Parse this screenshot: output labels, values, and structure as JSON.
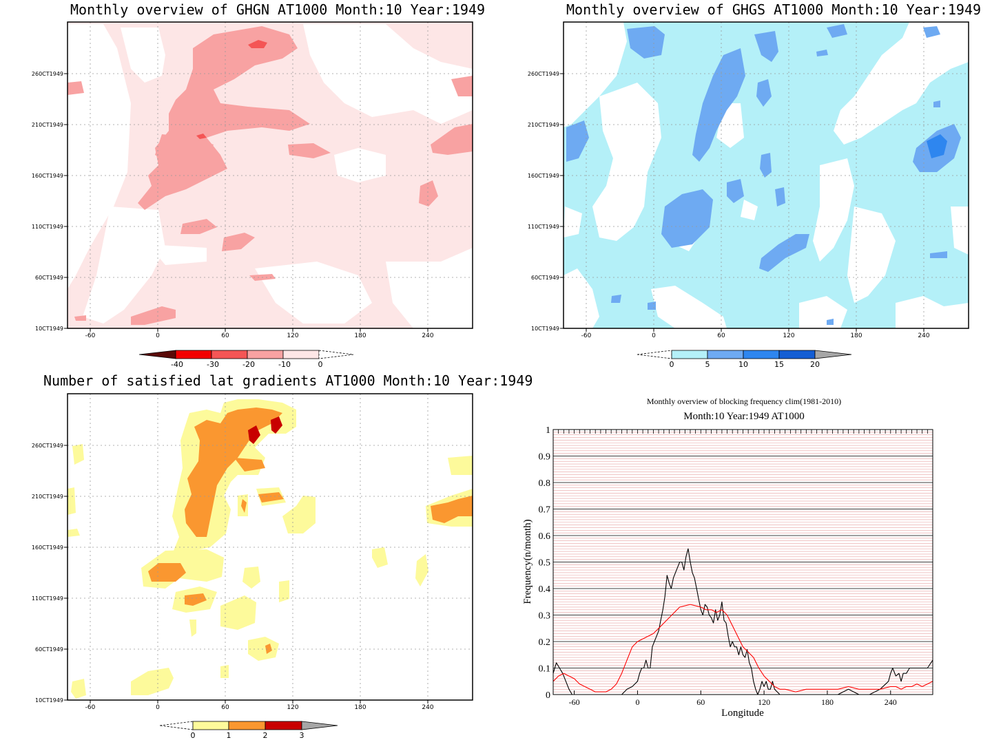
{
  "panels": {
    "ghgn": {
      "title": "Monthly overview of GHGN AT1000 Month:10 Year:1949",
      "x_ticks": [
        "-60",
        "0",
        "60",
        "120",
        "180",
        "240"
      ],
      "y_ticks": [
        "10CT1949",
        "60CT1949",
        "110CT1949",
        "160CT1949",
        "210CT1949",
        "260CT1949"
      ],
      "colorbar": {
        "labels": [
          "-40",
          "-30",
          "-20",
          "-10",
          "0"
        ],
        "colors": [
          "#5a0a08",
          "#f20000",
          "#f45555",
          "#f8a2a2",
          "#fde6e6",
          "#ffffff"
        ]
      }
    },
    "ghgs": {
      "title": "Monthly overview of GHGS AT1000 Month:10 Year:1949",
      "x_ticks": [
        "-60",
        "0",
        "60",
        "120",
        "180",
        "240"
      ],
      "y_ticks": [
        "10CT1949",
        "60CT1949",
        "110CT1949",
        "160CT1949",
        "210CT1949",
        "260CT1949"
      ],
      "colorbar": {
        "labels": [
          "0",
          "5",
          "10",
          "15",
          "20"
        ],
        "colors": [
          "#ffffff",
          "#b4f0f8",
          "#6eaaf2",
          "#2e86ef",
          "#145ed4",
          "#a6a6a6"
        ]
      }
    },
    "gradients": {
      "title": "Number of satisfied lat gradients AT1000 Month:10 Year:1949",
      "x_ticks": [
        "-60",
        "0",
        "60",
        "120",
        "180",
        "240"
      ],
      "y_ticks": [
        "10CT1949",
        "60CT1949",
        "110CT1949",
        "160CT1949",
        "210CT1949",
        "260CT1949"
      ],
      "colorbar": {
        "labels": [
          "0",
          "1",
          "2",
          "3"
        ],
        "colors": [
          "#ffffff",
          "#fdfa9b",
          "#fa9730",
          "#c80000",
          "#a6a6a6"
        ]
      }
    },
    "blocking": {
      "title": "Monthly overview of blocking frequency clim(1981-2010)",
      "subtitle": "Month:10 Year:1949  AT1000"
    }
  },
  "chart_data": [
    {
      "type": "heatmap",
      "title": "Monthly overview of GHGN AT1000 Month:10 Year:1949",
      "x_range": [
        -80,
        280
      ],
      "x_ticks": [
        -60,
        0,
        60,
        120,
        180,
        240
      ],
      "y_ticks": [
        "10CT1949",
        "60CT1949",
        "110CT1949",
        "160CT1949",
        "210CT1949",
        "260CT1949"
      ],
      "levels": [
        -40,
        -30,
        -20,
        -10,
        0
      ],
      "colors": [
        "#5a0a08",
        "#f20000",
        "#f45555",
        "#f8a2a2",
        "#fde6e6",
        "#ffffff"
      ]
    },
    {
      "type": "heatmap",
      "title": "Monthly overview of GHGS AT1000 Month:10 Year:1949",
      "x_range": [
        -80,
        280
      ],
      "x_ticks": [
        -60,
        0,
        60,
        120,
        180,
        240
      ],
      "y_ticks": [
        "10CT1949",
        "60CT1949",
        "110CT1949",
        "160CT1949",
        "210CT1949",
        "260CT1949"
      ],
      "levels": [
        0,
        5,
        10,
        15,
        20
      ],
      "colors": [
        "#ffffff",
        "#b4f0f8",
        "#6eaaf2",
        "#2e86ef",
        "#145ed4",
        "#a6a6a6"
      ]
    },
    {
      "type": "heatmap",
      "title": "Number of satisfied lat gradients AT1000 Month:10 Year:1949",
      "x_range": [
        -80,
        280
      ],
      "x_ticks": [
        -60,
        0,
        60,
        120,
        180,
        240
      ],
      "y_ticks": [
        "10CT1949",
        "60CT1949",
        "110CT1949",
        "160CT1949",
        "210CT1949",
        "260CT1949"
      ],
      "levels": [
        0,
        1,
        2,
        3
      ],
      "colors": [
        "#ffffff",
        "#fdfa9b",
        "#fa9730",
        "#c80000",
        "#a6a6a6"
      ]
    },
    {
      "type": "line",
      "title": "Monthly overview of blocking frequency clim(1981-2010)",
      "subtitle": "Month:10 Year:1949  AT1000",
      "xlabel": "Longitude",
      "ylabel": "Frequency(n/month)",
      "xlim": [
        -80,
        280
      ],
      "ylim": [
        0,
        1
      ],
      "x_ticks": [
        -60,
        0,
        60,
        120,
        180,
        240
      ],
      "y_ticks": [
        0,
        0.1,
        0.2,
        0.3,
        0.4,
        0.5,
        0.6,
        0.7,
        0.8,
        0.9,
        1
      ],
      "grid": true,
      "series": [
        {
          "color": "#000000",
          "x": [
            -80,
            -77,
            -74,
            -71,
            -68,
            -65,
            -62,
            -59,
            -56,
            -50,
            -40,
            -30,
            -20,
            -15,
            -10,
            -5,
            0,
            2,
            4,
            6,
            8,
            10,
            12,
            14,
            16,
            18,
            20,
            22,
            24,
            26,
            28,
            30,
            32,
            34,
            36,
            38,
            40,
            42,
            44,
            46,
            48,
            50,
            52,
            54,
            56,
            58,
            60,
            62,
            64,
            66,
            68,
            70,
            72,
            74,
            76,
            78,
            80,
            82,
            84,
            86,
            88,
            90,
            92,
            94,
            96,
            98,
            100,
            102,
            104,
            106,
            108,
            110,
            112,
            114,
            116,
            118,
            120,
            122,
            124,
            126,
            128,
            130,
            135,
            140,
            150,
            160,
            170,
            180,
            190,
            200,
            210,
            220,
            230,
            238,
            240,
            242,
            245,
            248,
            250,
            252,
            255,
            258,
            260,
            265,
            270,
            275,
            280
          ],
          "y": [
            0.08,
            0.12,
            0.1,
            0.08,
            0.05,
            0.02,
            0,
            0,
            0,
            0,
            0,
            0,
            0,
            0,
            0.02,
            0.03,
            0.05,
            0.08,
            0.1,
            0.1,
            0.13,
            0.1,
            0.1,
            0.18,
            0.2,
            0.22,
            0.24,
            0.28,
            0.32,
            0.37,
            0.45,
            0.42,
            0.4,
            0.44,
            0.46,
            0.48,
            0.5,
            0.5,
            0.47,
            0.52,
            0.55,
            0.5,
            0.46,
            0.44,
            0.4,
            0.36,
            0.32,
            0.3,
            0.34,
            0.33,
            0.3,
            0.29,
            0.27,
            0.32,
            0.28,
            0.3,
            0.35,
            0.28,
            0.27,
            0.22,
            0.18,
            0.2,
            0.18,
            0.18,
            0.15,
            0.18,
            0.15,
            0.14,
            0.17,
            0.12,
            0.1,
            0.05,
            0.02,
            0,
            0.02,
            0.05,
            0.03,
            0.05,
            0.02,
            0.02,
            0.05,
            0.02,
            0,
            0,
            0,
            0,
            0,
            0,
            0,
            0.02,
            0,
            0,
            0.02,
            0.05,
            0.08,
            0.1,
            0.07,
            0.08,
            0.05,
            0.08,
            0.08,
            0.1,
            0.1,
            0.1,
            0.1,
            0.1,
            0.13
          ]
        },
        {
          "color": "#ff0000",
          "x": [
            -80,
            -75,
            -70,
            -65,
            -60,
            -55,
            -50,
            -45,
            -40,
            -35,
            -30,
            -25,
            -20,
            -15,
            -10,
            -5,
            0,
            5,
            10,
            15,
            20,
            25,
            30,
            35,
            40,
            45,
            50,
            55,
            60,
            65,
            70,
            75,
            80,
            85,
            90,
            95,
            100,
            105,
            110,
            115,
            120,
            125,
            130,
            135,
            140,
            150,
            160,
            170,
            180,
            190,
            200,
            210,
            220,
            230,
            240,
            245,
            250,
            255,
            260,
            265,
            270,
            275,
            280
          ],
          "y": [
            0.05,
            0.07,
            0.08,
            0.07,
            0.06,
            0.04,
            0.03,
            0.02,
            0.01,
            0.01,
            0.01,
            0.02,
            0.04,
            0.08,
            0.13,
            0.18,
            0.2,
            0.21,
            0.22,
            0.23,
            0.25,
            0.27,
            0.29,
            0.31,
            0.33,
            0.335,
            0.34,
            0.335,
            0.33,
            0.32,
            0.32,
            0.31,
            0.32,
            0.3,
            0.26,
            0.22,
            0.18,
            0.16,
            0.14,
            0.1,
            0.07,
            0.05,
            0.03,
            0.02,
            0.02,
            0.01,
            0.02,
            0.02,
            0.02,
            0.02,
            0.03,
            0.02,
            0.02,
            0.02,
            0.03,
            0.03,
            0.02,
            0.03,
            0.03,
            0.04,
            0.03,
            0.04,
            0.05
          ]
        }
      ]
    }
  ]
}
